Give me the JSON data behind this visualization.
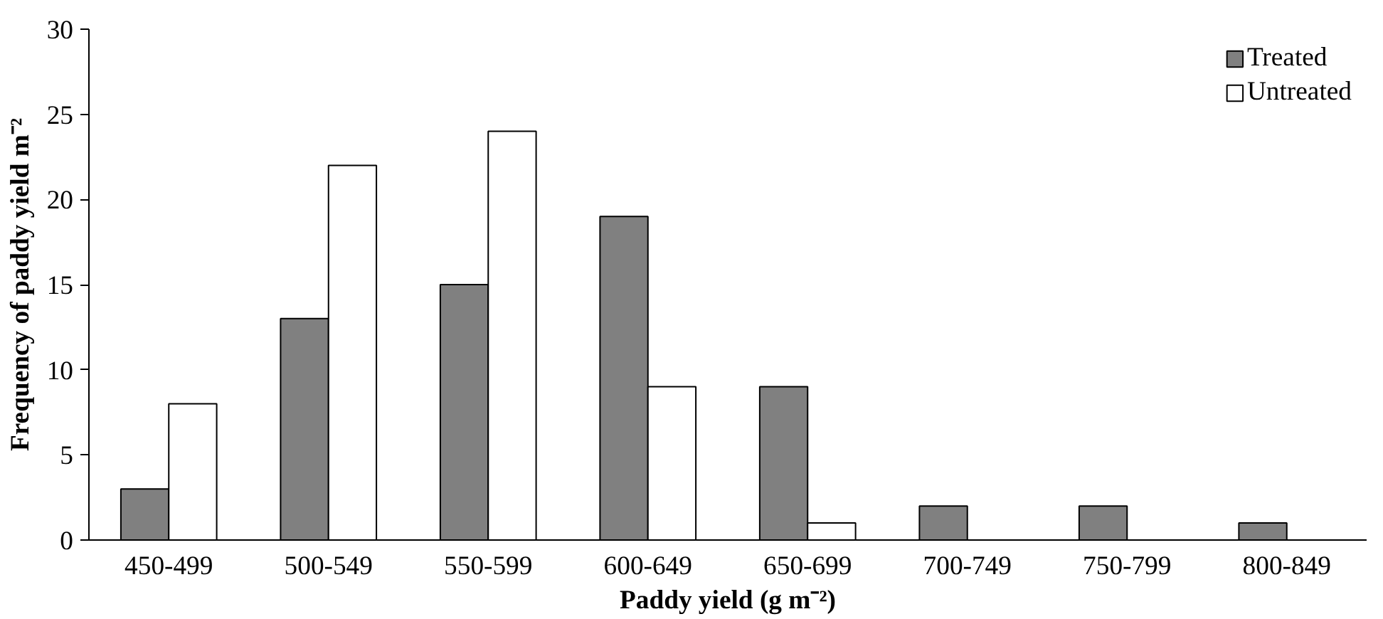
{
  "chart_data": {
    "type": "bar",
    "xlabel": "Paddy yield (g m⁻²)",
    "ylabel": "Frequency of paddy yield m⁻²",
    "categories": [
      "450-499",
      "500-549",
      "550-599",
      "600-649",
      "650-699",
      "700-749",
      "750-799",
      "800-849"
    ],
    "series": [
      {
        "name": "Treated",
        "color": "#808080",
        "values": [
          3,
          13,
          15,
          19,
          9,
          2,
          2,
          1
        ]
      },
      {
        "name": "Untreated",
        "color": "#ffffff",
        "values": [
          8,
          22,
          24,
          9,
          1,
          0,
          0,
          0
        ]
      }
    ],
    "ylim": [
      0,
      30
    ],
    "yticks": [
      0,
      5,
      10,
      15,
      20,
      25,
      30
    ],
    "legend": "top right",
    "grid": false
  }
}
